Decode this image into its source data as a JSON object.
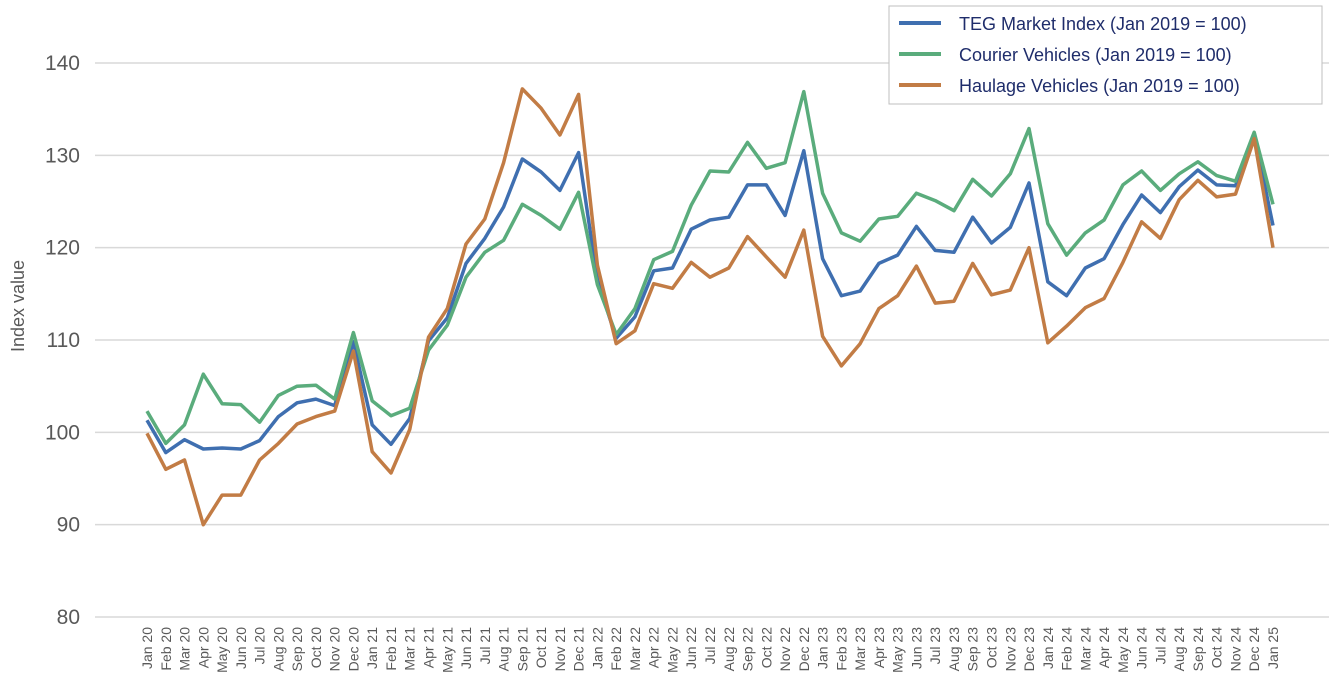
{
  "chart_data": {
    "type": "line",
    "y_label": "Index value",
    "categories": [
      "Jan 20",
      "Feb 20",
      "Mar 20",
      "Apr 20",
      "May 20",
      "Jun 20",
      "Jul 20",
      "Aug 20",
      "Sep 20",
      "Oct 20",
      "Nov 20",
      "Dec 20",
      "Jan 21",
      "Feb 21",
      "Mar 21",
      "Apr 21",
      "May 21",
      "Jun 21",
      "Jul 21",
      "Aug 21",
      "Sep 21",
      "Oct 21",
      "Nov 21",
      "Dec 21",
      "Jan 22",
      "Feb 22",
      "Mar 22",
      "Apr 22",
      "May 22",
      "Jun 22",
      "Jul 22",
      "Aug 22",
      "Sep 22",
      "Oct 22",
      "Nov 22",
      "Dec 22",
      "Jan 23",
      "Feb 23",
      "Mar 23",
      "Apr 23",
      "May 23",
      "Jun 23",
      "Jul 23",
      "Aug 23",
      "Sep 23",
      "Oct 23",
      "Nov 23",
      "Dec 23",
      "Jan 24",
      "Feb 24",
      "Mar 24",
      "Apr 24",
      "May 24",
      "Jun 24",
      "Jul 24",
      "Aug 24",
      "Sep 24",
      "Oct 24",
      "Nov 24",
      "Dec 24",
      "Jan 25"
    ],
    "series": [
      {
        "name": "TEG Market Index (Jan 2019 = 100)",
        "color": "#3f6fb0",
        "values": [
          101.3,
          97.8,
          99.2,
          98.2,
          98.3,
          98.2,
          99.1,
          101.7,
          103.2,
          103.6,
          102.9,
          109.8,
          100.8,
          98.7,
          101.5,
          109.9,
          112.4,
          118.3,
          121.0,
          124.4,
          129.6,
          128.2,
          126.2,
          130.3,
          116.5,
          110.2,
          112.5,
          117.5,
          117.8,
          122.0,
          123.0,
          123.3,
          126.8,
          126.8,
          123.5,
          130.5,
          118.8,
          114.8,
          115.3,
          118.3,
          119.2,
          122.3,
          119.7,
          119.5,
          123.3,
          120.5,
          122.2,
          127.0,
          116.3,
          114.8,
          117.8,
          118.8,
          122.5,
          125.7,
          123.8,
          126.6,
          128.4,
          126.8,
          126.7,
          132.3,
          122.4
        ]
      },
      {
        "name": "Courier Vehicles (Jan 2019 = 100)",
        "color": "#5aac7c",
        "values": [
          102.3,
          98.8,
          100.8,
          106.3,
          103.1,
          103.0,
          101.1,
          104.0,
          105.0,
          105.1,
          103.6,
          110.8,
          103.4,
          101.8,
          102.6,
          108.9,
          111.6,
          116.8,
          119.5,
          120.8,
          124.7,
          123.5,
          122.0,
          126.0,
          116.0,
          110.6,
          113.4,
          118.7,
          119.6,
          124.6,
          128.3,
          128.2,
          131.4,
          128.6,
          129.2,
          136.9,
          125.9,
          121.6,
          120.7,
          123.1,
          123.4,
          125.9,
          125.1,
          124.0,
          127.4,
          125.6,
          128.0,
          132.9,
          122.6,
          119.2,
          121.6,
          123.0,
          126.8,
          128.3,
          126.2,
          128.0,
          129.3,
          127.8,
          127.2,
          132.5,
          124.7
        ]
      },
      {
        "name": "Haulage Vehicles (Jan 2019 = 100)",
        "color": "#c27c45",
        "values": [
          99.9,
          96.0,
          97.0,
          90.0,
          93.2,
          93.2,
          97.0,
          98.8,
          100.9,
          101.7,
          102.3,
          108.8,
          97.9,
          95.6,
          100.3,
          110.3,
          113.4,
          120.4,
          123.1,
          129.2,
          137.2,
          135.1,
          132.2,
          136.6,
          118.1,
          109.6,
          111.0,
          116.1,
          115.6,
          118.4,
          116.8,
          117.8,
          121.2,
          119.0,
          116.8,
          121.9,
          110.4,
          107.2,
          109.6,
          113.4,
          114.8,
          118.0,
          114.0,
          114.2,
          118.3,
          114.9,
          115.4,
          120.0,
          109.7,
          111.5,
          113.5,
          114.5,
          118.4,
          122.8,
          121.0,
          125.2,
          127.3,
          125.5,
          125.8,
          131.8,
          120.0
        ]
      }
    ],
    "ylim": [
      80,
      140
    ],
    "yticks": [
      80,
      90,
      100,
      110,
      120,
      130,
      140
    ],
    "grid": true,
    "legend": "upper right"
  }
}
